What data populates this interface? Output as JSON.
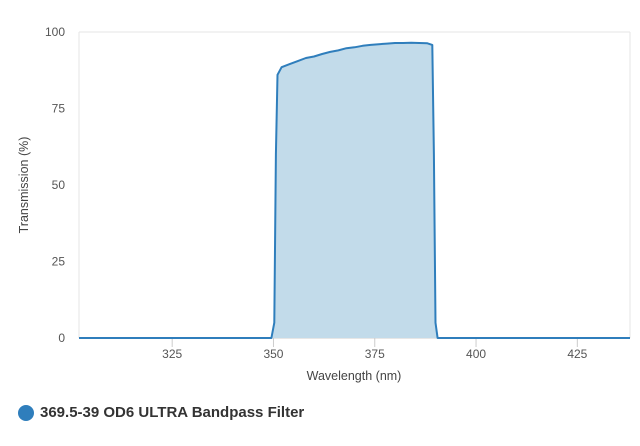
{
  "chart_data": {
    "type": "area",
    "title": "",
    "xlabel": "Wavelength (nm)",
    "ylabel": "Transmission (%)",
    "xlim": [
      302,
      438
    ],
    "ylim": [
      0,
      100
    ],
    "xticks": [
      "325",
      "350",
      "375",
      "400",
      "425"
    ],
    "yticks": [
      "0",
      "25",
      "50",
      "75",
      "100"
    ],
    "grid": false,
    "legend_position": "bottom-left",
    "series": [
      {
        "name": "369.5-39 OD6 ULTRA Bandpass Filter",
        "color": "#2f7ebc",
        "fill": "#c2dbea",
        "x": [
          302,
          349.5,
          350.2,
          350.6,
          351.0,
          352,
          354,
          356,
          358,
          360,
          362,
          364,
          366,
          368,
          370,
          372,
          374,
          376,
          378,
          380,
          382,
          384,
          386,
          388,
          389.2,
          389.6,
          390.0,
          390.5,
          438
        ],
        "y": [
          0,
          0,
          5,
          60,
          86,
          88.5,
          89.5,
          90.5,
          91.5,
          92,
          92.8,
          93.5,
          94,
          94.7,
          95,
          95.5,
          95.8,
          96,
          96.2,
          96.4,
          96.4,
          96.5,
          96.4,
          96.3,
          95.8,
          60,
          5,
          0,
          0
        ]
      }
    ]
  }
}
